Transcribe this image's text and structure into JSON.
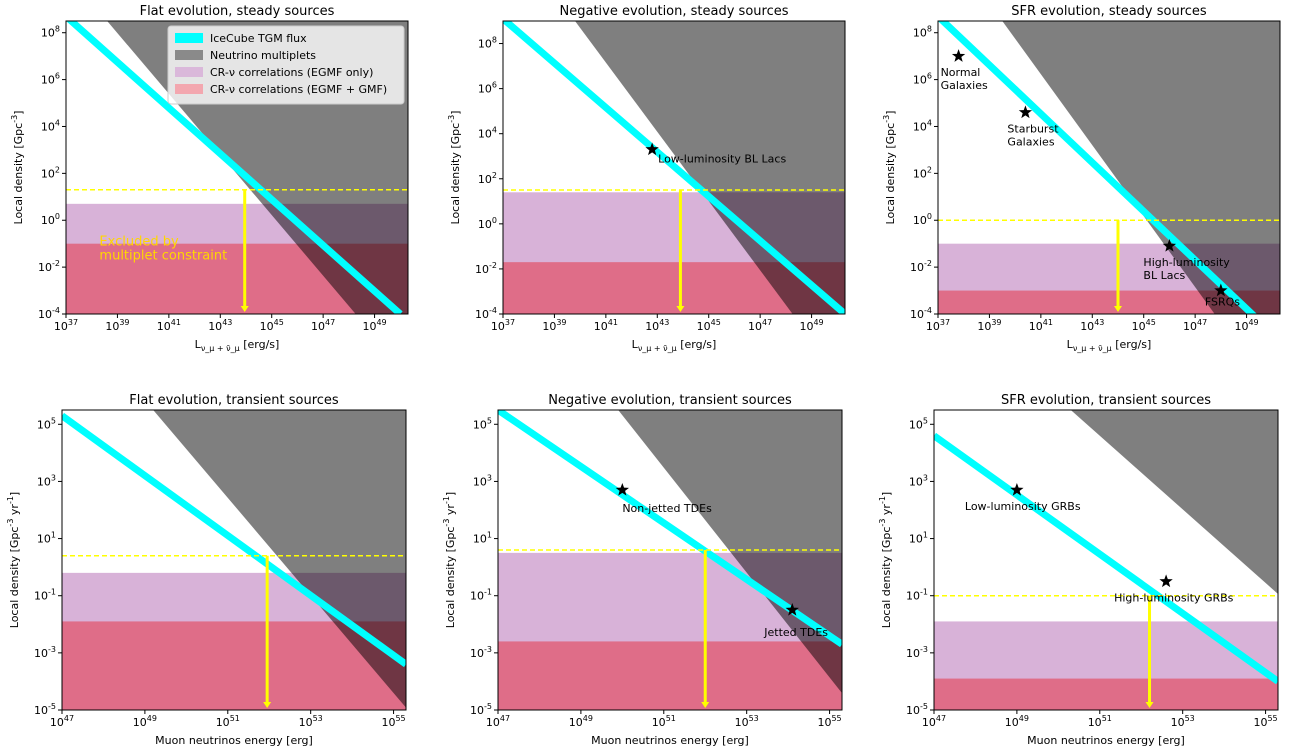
{
  "legend": {
    "items": [
      {
        "label": "IceCube TGM flux",
        "color": "#00ffff",
        "kind": "line"
      },
      {
        "label": "Neutrino multiplets",
        "color": "#808080",
        "kind": "patch"
      },
      {
        "label": "CR-ν correlations (EGMF only)",
        "color": "#d8b2d8",
        "kind": "patch"
      },
      {
        "label": "CR-ν correlations (EGMF + GMF)",
        "color": "#f4a0a8",
        "kind": "patch"
      }
    ]
  },
  "colors": {
    "tgm": "#00ffff",
    "multiplets": "#808080",
    "egmf_only": "#d8b2d8",
    "egmf_gmf": "#e0607a",
    "overlap": "#7b527d",
    "overlap_red": "#a33050",
    "limit": "#ffff00",
    "excluded_text": "#ffd700"
  },
  "chart_data": [
    {
      "type": "area",
      "title": "Flat evolution, steady sources",
      "xlabel": "L_{ν_μ + ν̄_μ} [erg/s]",
      "ylabel": "Local density [Gpc^{-3}]",
      "xlog": true,
      "ylog": true,
      "xlim_log10": [
        37,
        50.3
      ],
      "ylim_log10": [
        -4,
        8.5
      ],
      "xticks": [
        "10^37",
        "10^39",
        "10^41",
        "10^43",
        "10^45",
        "10^47",
        "10^49"
      ],
      "yticks": [
        "10^-4",
        "10^-2",
        "10^0",
        "10^2",
        "10^4",
        "10^6",
        "10^8"
      ],
      "tgm_line_log10": [
        [
          37,
          8.7
        ],
        [
          50,
          -4
        ]
      ],
      "multiplets_boundary_log10": [
        [
          38.6,
          8.5
        ],
        [
          48.2,
          -4
        ]
      ],
      "egmf_only_max_log10": 0.7,
      "egmf_gmf_max_log10": -1,
      "limit_y_log10": 1.3,
      "arrow_x_log10": 43.95,
      "text_annotation": "Excluded by\nmultiplet constraint",
      "text_pos_log10": [
        38.3,
        -1.6
      ],
      "sources": []
    },
    {
      "type": "area",
      "title": "Negative evolution, steady sources",
      "xlabel": "L_{ν_μ + ν̄_μ} [erg/s]",
      "ylabel": "Local density [Gpc^{-3}]",
      "xlog": true,
      "ylog": true,
      "xlim_log10": [
        37,
        50.3
      ],
      "ylim_log10": [
        -4,
        9
      ],
      "xticks": [
        "10^37",
        "10^39",
        "10^41",
        "10^43",
        "10^45",
        "10^47",
        "10^49"
      ],
      "yticks": [
        "10^-4",
        "10^-2",
        "10^0",
        "10^2",
        "10^4",
        "10^6",
        "10^8"
      ],
      "tgm_line_log10": [
        [
          37,
          9.1
        ],
        [
          50.3,
          -4
        ]
      ],
      "multiplets_boundary_log10": [
        [
          39.8,
          9
        ],
        [
          48.2,
          -4
        ]
      ],
      "egmf_only_max_log10": 1.4,
      "egmf_gmf_max_log10": -1.7,
      "limit_y_log10": 1.5,
      "arrow_x_log10": 43.9,
      "sources": [
        {
          "label": "Low-luminosity BL Lacs",
          "x_log10": 42.8,
          "y_log10": 3.3
        }
      ]
    },
    {
      "type": "area",
      "title": "SFR evolution, steady sources",
      "xlabel": "L_{ν_μ + ν̄_μ} [erg/s]",
      "ylabel": "Local density [Gpc^{-3}]",
      "xlog": true,
      "ylog": true,
      "xlim_log10": [
        37,
        50.3
      ],
      "ylim_log10": [
        -4,
        8.5
      ],
      "xticks": [
        "10^37",
        "10^39",
        "10^41",
        "10^43",
        "10^45",
        "10^47",
        "10^49"
      ],
      "yticks": [
        "10^-4",
        "10^-2",
        "10^0",
        "10^2",
        "10^4",
        "10^6",
        "10^8"
      ],
      "tgm_line_log10": [
        [
          37,
          8.7
        ],
        [
          49.5,
          -4.3
        ]
      ],
      "multiplets_boundary_log10": [
        [
          39.5,
          8.5
        ],
        [
          47.7,
          -4
        ]
      ],
      "egmf_only_max_log10": -1,
      "egmf_gmf_max_log10": -3,
      "limit_y_log10": 0,
      "arrow_x_log10": 44.0,
      "sources": [
        {
          "label": "Normal\nGalaxies",
          "x_log10": 37.8,
          "y_log10": 7.0
        },
        {
          "label": "Starburst\nGalaxies",
          "x_log10": 40.4,
          "y_log10": 4.6
        },
        {
          "label": "High-luminosity\nBL Lacs",
          "x_log10": 46.0,
          "y_log10": -1.1
        },
        {
          "label": "FSRQs",
          "x_log10": 48.0,
          "y_log10": -3.0
        }
      ]
    },
    {
      "type": "area",
      "title": "Flat evolution, transient sources",
      "xlabel": "Muon neutrinos energy [erg]",
      "ylabel": "Local density [Gpc^{-3} yr^{-1}]",
      "xlog": true,
      "ylog": true,
      "xlim_log10": [
        47,
        55.3
      ],
      "ylim_log10": [
        -5,
        5.5
      ],
      "xticks": [
        "10^47",
        "10^49",
        "10^51",
        "10^53",
        "10^55"
      ],
      "yticks": [
        "10^-5",
        "10^-3",
        "10^-1",
        "10^1",
        "10^3",
        "10^5"
      ],
      "tgm_line_log10": [
        [
          47,
          5.3
        ],
        [
          55.3,
          -3.4
        ]
      ],
      "multiplets_boundary_log10": [
        [
          49.2,
          5.5
        ],
        [
          55.3,
          -5
        ]
      ],
      "egmf_only_max_log10": -0.2,
      "egmf_gmf_max_log10": -1.9,
      "limit_y_log10": 0.4,
      "arrow_x_log10": 51.95,
      "sources": []
    },
    {
      "type": "area",
      "title": "Negative evolution, transient sources",
      "xlabel": "Muon neutrinos energy [erg]",
      "ylabel": "Local density [Gpc^{-3} yr^{-1}]",
      "xlog": true,
      "ylog": true,
      "xlim_log10": [
        47,
        55.3
      ],
      "ylim_log10": [
        -5,
        5.5
      ],
      "xticks": [
        "10^47",
        "10^49",
        "10^51",
        "10^53",
        "10^55"
      ],
      "yticks": [
        "10^-5",
        "10^-3",
        "10^-1",
        "10^1",
        "10^3",
        "10^5"
      ],
      "tgm_line_log10": [
        [
          47,
          5.5
        ],
        [
          55.3,
          -2.7
        ]
      ],
      "multiplets_boundary_log10": [
        [
          49.9,
          5.5
        ],
        [
          55.3,
          -4.5
        ]
      ],
      "egmf_only_max_log10": 0.5,
      "egmf_gmf_max_log10": -2.6,
      "limit_y_log10": 0.6,
      "arrow_x_log10": 52.0,
      "sources": [
        {
          "label": "Non-jetted TDEs",
          "x_log10": 50.0,
          "y_log10": 2.7
        },
        {
          "label": "Jetted TDEs",
          "x_log10": 54.1,
          "y_log10": -1.5
        }
      ]
    },
    {
      "type": "area",
      "title": "SFR evolution, transient sources",
      "xlabel": "Muon neutrinos energy [erg]",
      "ylabel": "Local density [Gpc^{-3} yr^{-1}]",
      "xlog": true,
      "ylog": true,
      "xlim_log10": [
        47,
        55.3
      ],
      "ylim_log10": [
        -5,
        5.5
      ],
      "xticks": [
        "10^47",
        "10^49",
        "10^51",
        "10^53",
        "10^55"
      ],
      "yticks": [
        "10^-5",
        "10^-3",
        "10^-1",
        "10^1",
        "10^3",
        "10^5"
      ],
      "tgm_line_log10": [
        [
          47,
          4.6
        ],
        [
          55.3,
          -4
        ]
      ],
      "multiplets_boundary_log10": [
        [
          50.3,
          5.5
        ],
        [
          55.3,
          -1
        ]
      ],
      "egmf_only_max_log10": -1.9,
      "egmf_gmf_max_log10": -3.9,
      "limit_y_log10": -1,
      "arrow_x_log10": 52.2,
      "sources": [
        {
          "label": "Low-luminosity GRBs",
          "x_log10": 49.0,
          "y_log10": 2.7
        },
        {
          "label": "High-luminosity GRBs",
          "x_log10": 52.6,
          "y_log10": -0.5
        }
      ]
    }
  ]
}
